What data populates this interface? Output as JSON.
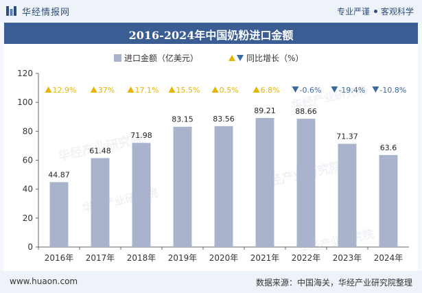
{
  "header": {
    "brand": "华经情报网",
    "tagline_left": "专业严谨",
    "tagline_right": "客观科学"
  },
  "title": "2016-2024年中国奶粉进口金额",
  "legend": {
    "bar_label": "进口金额（亿美元）",
    "growth_label": "同比增长（%）"
  },
  "colors": {
    "bar": "#a9b4cc",
    "up": "#e8b400",
    "down": "#3a6a9e",
    "title_bg": "#3a5d93"
  },
  "watermark": "华经产业研究院",
  "footer": {
    "site": "www.huaon.com",
    "source": "数据来源：中国海关，华经产业研究院整理"
  },
  "chart_data": {
    "type": "bar",
    "title": "2016-2024年中国奶粉进口金额",
    "categories": [
      "2016年",
      "2017年",
      "2018年",
      "2019年",
      "2020年",
      "2021年",
      "2022年",
      "2023年",
      "2024年"
    ],
    "series": [
      {
        "name": "进口金额（亿美元）",
        "values": [
          44.87,
          61.48,
          71.98,
          83.15,
          83.56,
          89.21,
          88.66,
          71.37,
          63.6
        ]
      }
    ],
    "growth": {
      "name": "同比增长（%）",
      "values": [
        12.9,
        37,
        17.1,
        15.5,
        0.5,
        6.8,
        -0.6,
        -19.4,
        -10.8
      ],
      "labels": [
        "12.9%",
        "37%",
        "17.1%",
        "15.5%",
        "0.5%",
        "6.8%",
        "-0.6%",
        "-19.4%",
        "-10.8%"
      ]
    },
    "value_labels": [
      "44.87",
      "61.48",
      "71.98",
      "83.15",
      "83.56",
      "89.21",
      "88.66",
      "71.37",
      "63.6"
    ],
    "ylim": [
      0,
      120
    ],
    "yticks": [
      "0",
      "20",
      "40",
      "60",
      "80",
      "100",
      "120"
    ],
    "ytick_values": [
      0,
      20,
      40,
      60,
      80,
      100,
      120
    ],
    "grid": false,
    "legend_position": "top-center"
  }
}
